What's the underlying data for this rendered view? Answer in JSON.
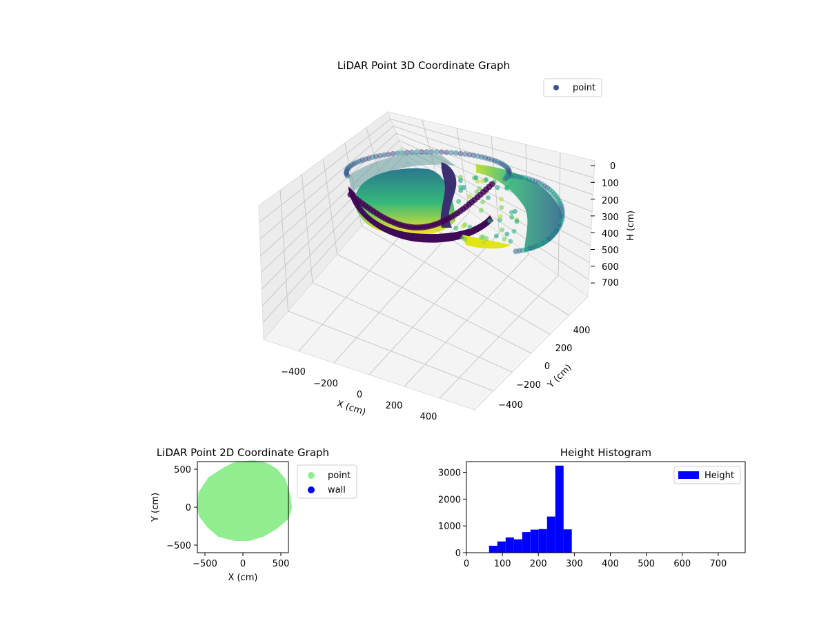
{
  "chart_data": [
    {
      "type": "scatter",
      "projection": "3d",
      "title": "LiDAR Point 3D Coordinate Graph",
      "xlabel": "X (cm)",
      "ylabel": "Y (cm)",
      "zlabel": "H (cm)",
      "xticks": [
        "−400",
        "−200",
        "0",
        "200",
        "400"
      ],
      "yticks": [
        "400",
        "200",
        "0",
        "−200",
        "−400"
      ],
      "zticks": [
        "0",
        "100",
        "200",
        "300",
        "400",
        "500",
        "600",
        "700"
      ],
      "zlim": [
        750,
        0
      ],
      "zinverted": true,
      "legend": [
        {
          "label": "point",
          "color": "#3b528b"
        }
      ],
      "legend_position": "upper right",
      "colormap": "viridis",
      "grid": true
    },
    {
      "type": "scatter",
      "title": "LiDAR Point 2D Coordinate Graph",
      "xlabel": "X (cm)",
      "ylabel": "Y (cm)",
      "xticks": [
        "−500",
        "0",
        "500"
      ],
      "yticks": [
        "500",
        "0",
        "−500"
      ],
      "xlim": [
        -600,
        600
      ],
      "ylim": [
        -600,
        600
      ],
      "legend": [
        {
          "label": "point",
          "color": "#90ee90"
        },
        {
          "label": "wall",
          "color": "#0000ff"
        }
      ],
      "legend_position": "outside right",
      "series": [
        {
          "name": "point",
          "color": "#90ee90",
          "outline": [
            [
              -560,
              -20
            ],
            [
              -540,
              180
            ],
            [
              -420,
              360
            ],
            [
              -300,
              440
            ],
            [
              -200,
              500
            ],
            [
              -120,
              540
            ],
            [
              0,
              560
            ],
            [
              150,
              570
            ],
            [
              300,
              540
            ],
            [
              420,
              470
            ],
            [
              520,
              350
            ],
            [
              580,
              150
            ],
            [
              600,
              0
            ],
            [
              560,
              -130
            ],
            [
              420,
              -250
            ],
            [
              250,
              -350
            ],
            [
              80,
              -400
            ],
            [
              -100,
              -400
            ],
            [
              -300,
              -350
            ],
            [
              -430,
              -240
            ],
            [
              -530,
              -110
            ]
          ]
        },
        {
          "name": "wall",
          "color": "#0000ff",
          "points": []
        }
      ]
    },
    {
      "type": "bar",
      "title": "Height Histogram",
      "xlabel": "",
      "ylabel": "",
      "xticks": [
        "0",
        "100",
        "200",
        "300",
        "400",
        "500",
        "600",
        "700"
      ],
      "yticks": [
        "0",
        "1000",
        "2000",
        "3000"
      ],
      "xlim": [
        0,
        775
      ],
      "ylim": [
        0,
        3400
      ],
      "legend": [
        {
          "label": "Height",
          "color": "#0000ff"
        }
      ],
      "legend_position": "upper right",
      "bin_edges": [
        63,
        86,
        109,
        132,
        155,
        178,
        201,
        224,
        247,
        270,
        293
      ],
      "values": [
        260,
        420,
        570,
        500,
        770,
        860,
        880,
        1350,
        3250,
        870
      ],
      "color": "#0000ff"
    }
  ]
}
